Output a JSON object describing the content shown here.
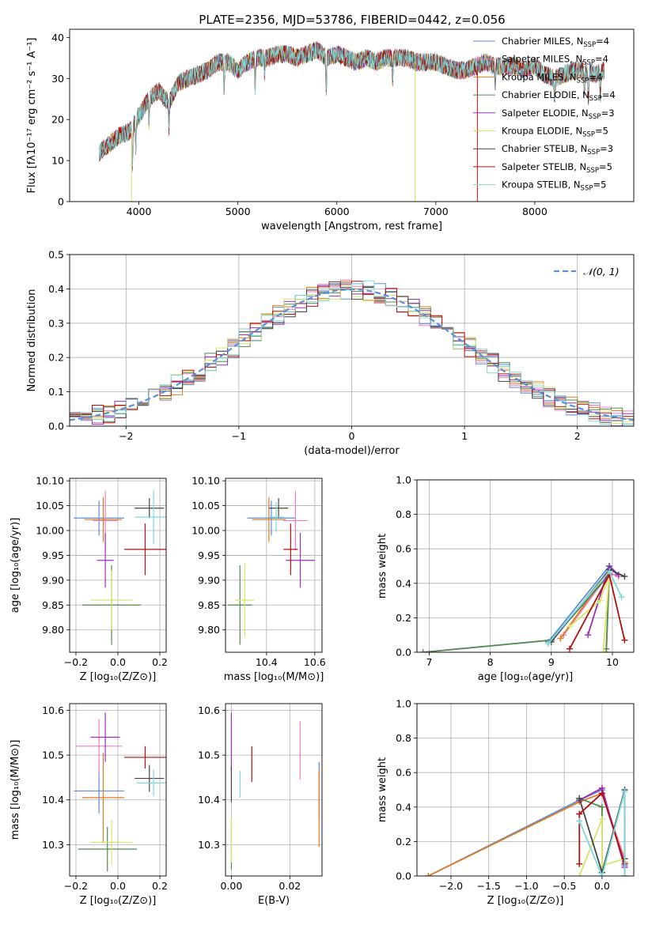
{
  "figure_title": "PLATE=2356, MJD=53786, FIBERID=0442, z=0.056",
  "model_colors": [
    "#5b8fd9",
    "#f07cc0",
    "#e07b22",
    "#4f8a4f",
    "#9b2fb5",
    "#d8e46b",
    "#444444",
    "#b01010",
    "#7fd8d8"
  ],
  "legend_labels": [
    {
      "base": "Chabrier MILES, N",
      "sub": "SSP",
      "tail": "=4"
    },
    {
      "base": "Salpeter MILES, N",
      "sub": "SSP",
      "tail": "=4"
    },
    {
      "base": "Kroupa MILES, N",
      "sub": "SSP",
      "tail": "=4"
    },
    {
      "base": "Chabrier ELODIE, N",
      "sub": "SSP",
      "tail": "=4"
    },
    {
      "base": "Salpeter ELODIE, N",
      "sub": "SSP",
      "tail": "=3"
    },
    {
      "base": "Kroupa ELODIE, N",
      "sub": "SSP",
      "tail": "=5"
    },
    {
      "base": "Chabrier STELIB, N",
      "sub": "SSP",
      "tail": "=3"
    },
    {
      "base": "Salpeter STELIB, N",
      "sub": "SSP",
      "tail": "=5"
    },
    {
      "base": "Kroupa STELIB, N",
      "sub": "SSP",
      "tail": "=5"
    }
  ],
  "chart_data": [
    {
      "id": "spectrum",
      "type": "line",
      "xlabel": "wavelength [Angstrom, rest frame]",
      "ylabel": "Flux [fλ10⁻¹⁷ erg cm⁻² s⁻¹ A⁻¹]",
      "xlim": [
        3300,
        9000
      ],
      "ylim": [
        0,
        42
      ],
      "xticks": [
        4000,
        5000,
        6000,
        7000,
        8000
      ],
      "yticks": [
        0,
        10,
        20,
        30,
        40
      ],
      "grid": false,
      "legend": "upper right",
      "continuum": {
        "x": [
          3600,
          3700,
          3800,
          3900,
          4000,
          4100,
          4200,
          4300,
          4400,
          4500,
          4600,
          4700,
          4800,
          4900,
          5000,
          5100,
          5200,
          5300,
          5400,
          5500,
          5600,
          5700,
          5800,
          5900,
          6000,
          6100,
          6200,
          6300,
          6400,
          6500,
          6600,
          6700,
          6800,
          6900,
          7000,
          7100,
          7200,
          7300,
          7400,
          7500,
          7600,
          7700,
          7800,
          7900,
          8000,
          8100,
          8200,
          8300,
          8400,
          8500,
          8600,
          8700
        ],
        "y": [
          12,
          14,
          16,
          17,
          21,
          25,
          27,
          24,
          29,
          30,
          31,
          32,
          34,
          34,
          32,
          34,
          35,
          35,
          36,
          36,
          35,
          36,
          37,
          35,
          36,
          35,
          34,
          35,
          34,
          35,
          35,
          35,
          34,
          34,
          34,
          33,
          32,
          32,
          33,
          34,
          33,
          33,
          33,
          32,
          33,
          31,
          30,
          31,
          32,
          32,
          31,
          32
        ]
      },
      "absorption_dips": [
        {
          "x": 3934,
          "depth": 10
        },
        {
          "x": 3969,
          "depth": 8
        },
        {
          "x": 4102,
          "depth": 6
        },
        {
          "x": 4304,
          "depth": 6
        },
        {
          "x": 4861,
          "depth": 6
        },
        {
          "x": 5175,
          "depth": 7
        },
        {
          "x": 5270,
          "depth": 4
        },
        {
          "x": 5893,
          "depth": 8
        },
        {
          "x": 6563,
          "depth": 5
        },
        {
          "x": 7600,
          "depth": 4
        },
        {
          "x": 8200,
          "depth": 6
        },
        {
          "x": 8500,
          "depth": 5
        },
        {
          "x": 8542,
          "depth": 7
        },
        {
          "x": 8662,
          "depth": 6
        }
      ],
      "spikes": [
        {
          "x": 3925,
          "color_index": 5,
          "bottom": 0
        },
        {
          "x": 6790,
          "color_index": 5,
          "bottom": 0
        },
        {
          "x": 7420,
          "color_index": 7,
          "bottom": 0
        }
      ],
      "wavelength_range": [
        3600,
        8700
      ]
    },
    {
      "id": "residual_hist",
      "type": "histogram",
      "xlabel": "(data-model)/error",
      "ylabel": "Normed distribution",
      "xlim": [
        -2.5,
        2.5
      ],
      "ylim": [
        0,
        0.5
      ],
      "xticks": [
        -2,
        -1,
        0,
        1,
        2
      ],
      "yticks": [
        0,
        0.1,
        0.2,
        0.3,
        0.4,
        0.5
      ],
      "grid": true,
      "bin_width": 0.1,
      "reference_curve": {
        "name": "𝒩(0, 1)",
        "label_base": "𝒩(0, 1)",
        "mean": 0,
        "sigma": 1,
        "color": "#5b8fd9"
      },
      "legend": "upper right"
    },
    {
      "id": "age_vs_Z",
      "type": "errorbar",
      "xlabel": "Z [log₁₀(Z/Z⊙)]",
      "ylabel": "age  [log₁₀(age/yr)]",
      "xlim": [
        -0.23,
        0.23
      ],
      "ylim": [
        9.755,
        10.105
      ],
      "xticks": [
        -0.2,
        0.0,
        0.2
      ],
      "yticks": [
        9.8,
        9.85,
        9.9,
        9.95,
        10.0,
        10.05,
        10.1
      ],
      "grid": true,
      "points": [
        {
          "model": 0,
          "x": -0.09,
          "xerr": 0.12,
          "y": 10.025,
          "yerr": 0.035
        },
        {
          "model": 1,
          "x": -0.06,
          "xerr": 0.06,
          "y": 10.02,
          "yerr": 0.06
        },
        {
          "model": 2,
          "x": -0.07,
          "xerr": 0.09,
          "y": 10.022,
          "yerr": 0.045
        },
        {
          "model": 3,
          "x": -0.03,
          "xerr": 0.14,
          "y": 9.85,
          "yerr": 0.08
        },
        {
          "model": 4,
          "x": -0.06,
          "xerr": 0.04,
          "y": 9.94,
          "yerr": 0.055
        },
        {
          "model": 5,
          "x": -0.03,
          "xerr": 0.1,
          "y": 9.86,
          "yerr": 0.06
        },
        {
          "model": 6,
          "x": 0.15,
          "xerr": 0.07,
          "y": 10.045,
          "yerr": 0.02
        },
        {
          "model": 7,
          "x": 0.13,
          "xerr": 0.1,
          "y": 9.962,
          "yerr": 0.052
        },
        {
          "model": 8,
          "x": 0.17,
          "xerr": 0.09,
          "y": 10.027,
          "yerr": 0.055
        }
      ]
    },
    {
      "id": "age_vs_mass",
      "type": "errorbar",
      "xlabel": "mass [log₁₀(M/M⊙)]",
      "ylabel": "",
      "xlim": [
        10.23,
        10.63
      ],
      "ylim": [
        9.755,
        10.105
      ],
      "xticks": [
        10.4,
        10.6
      ],
      "yticks": [
        9.8,
        9.85,
        9.9,
        9.95,
        10.0,
        10.05,
        10.1
      ],
      "grid": true,
      "points": [
        {
          "model": 0,
          "x": 10.42,
          "xerr": 0.1,
          "y": 10.025,
          "yerr": 0.035
        },
        {
          "model": 1,
          "x": 10.52,
          "xerr": 0.05,
          "y": 10.02,
          "yerr": 0.06
        },
        {
          "model": 2,
          "x": 10.41,
          "xerr": 0.07,
          "y": 10.022,
          "yerr": 0.045
        },
        {
          "model": 3,
          "x": 10.29,
          "xerr": 0.05,
          "y": 9.85,
          "yerr": 0.08
        },
        {
          "model": 4,
          "x": 10.54,
          "xerr": 0.06,
          "y": 9.94,
          "yerr": 0.055
        },
        {
          "model": 5,
          "x": 10.31,
          "xerr": 0.04,
          "y": 9.86,
          "yerr": 0.075
        },
        {
          "model": 6,
          "x": 10.45,
          "xerr": 0.04,
          "y": 10.045,
          "yerr": 0.02
        },
        {
          "model": 7,
          "x": 10.5,
          "xerr": 0.03,
          "y": 9.962,
          "yerr": 0.052
        },
        {
          "model": 8,
          "x": 10.44,
          "xerr": 0.03,
          "y": 10.027,
          "yerr": 0.03
        }
      ]
    },
    {
      "id": "weight_vs_age",
      "type": "line",
      "xlabel": "age  [log₁₀(age/yr)]",
      "ylabel": "mass weight",
      "xlim": [
        6.8,
        10.35
      ],
      "ylim": [
        0,
        1
      ],
      "xticks": [
        7,
        8,
        9,
        10
      ],
      "yticks": [
        0,
        0.2,
        0.4,
        0.6,
        0.8,
        1.0
      ],
      "grid": true,
      "series": [
        {
          "model": 0,
          "x": [
            8.95,
            9.95,
            10.1
          ],
          "y": [
            0.06,
            0.5,
            0.44
          ]
        },
        {
          "model": 1,
          "x": [
            9.2,
            9.95,
            10.1
          ],
          "y": [
            0.1,
            0.46,
            0.44
          ]
        },
        {
          "model": 2,
          "x": [
            9.15,
            9.95,
            9.9
          ],
          "y": [
            0.08,
            0.48,
            0.0
          ]
        },
        {
          "model": 3,
          "x": [
            6.9,
            9.0,
            9.95,
            9.9
          ],
          "y": [
            0.0,
            0.07,
            0.45,
            0.02
          ]
        },
        {
          "model": 4,
          "x": [
            9.6,
            9.95,
            10.1
          ],
          "y": [
            0.1,
            0.5,
            0.45
          ]
        },
        {
          "model": 5,
          "x": [
            9.3,
            9.8,
            9.95,
            9.85
          ],
          "y": [
            0.15,
            0.3,
            0.45,
            0.0
          ]
        },
        {
          "model": 6,
          "x": [
            9.0,
            9.95,
            10.2
          ],
          "y": [
            0.06,
            0.48,
            0.44
          ]
        },
        {
          "model": 7,
          "x": [
            9.3,
            9.95,
            10.2
          ],
          "y": [
            0.02,
            0.45,
            0.07
          ]
        },
        {
          "model": 8,
          "x": [
            8.95,
            9.95,
            10.15
          ],
          "y": [
            0.05,
            0.47,
            0.32
          ]
        }
      ]
    },
    {
      "id": "mass_vs_Z",
      "type": "errorbar",
      "xlabel": "Z [log₁₀(Z/Z⊙)]",
      "ylabel": "mass [log₁₀(M/M⊙)]",
      "xlim": [
        -0.23,
        0.23
      ],
      "ylim": [
        10.23,
        10.615
      ],
      "xticks": [
        -0.2,
        0.0,
        0.2
      ],
      "yticks": [
        10.3,
        10.4,
        10.5,
        10.6
      ],
      "grid": true,
      "points": [
        {
          "model": 0,
          "x": -0.09,
          "xerr": 0.12,
          "y": 10.42,
          "yerr": 0.05
        },
        {
          "model": 1,
          "x": -0.09,
          "xerr": 0.11,
          "y": 10.52,
          "yerr": 0.06
        },
        {
          "model": 2,
          "x": -0.07,
          "xerr": 0.1,
          "y": 10.405,
          "yerr": 0.1
        },
        {
          "model": 3,
          "x": -0.05,
          "xerr": 0.14,
          "y": 10.29,
          "yerr": 0.05
        },
        {
          "model": 4,
          "x": -0.06,
          "xerr": 0.07,
          "y": 10.54,
          "yerr": 0.055
        },
        {
          "model": 5,
          "x": -0.03,
          "xerr": 0.1,
          "y": 10.305,
          "yerr": 0.05
        },
        {
          "model": 6,
          "x": 0.15,
          "xerr": 0.07,
          "y": 10.448,
          "yerr": 0.03
        },
        {
          "model": 7,
          "x": 0.13,
          "xerr": 0.1,
          "y": 10.495,
          "yerr": 0.025
        },
        {
          "model": 8,
          "x": 0.17,
          "xerr": 0.08,
          "y": 10.438,
          "yerr": 0.03
        }
      ]
    },
    {
      "id": "mass_vs_ebv",
      "type": "errorbar",
      "xlabel": "E(B-V)",
      "ylabel": "",
      "xlim": [
        -0.002,
        0.031
      ],
      "ylim": [
        10.23,
        10.615
      ],
      "xticks": [
        0.0,
        0.02
      ],
      "yticks": [
        10.3,
        10.4,
        10.5,
        10.6
      ],
      "grid": true,
      "points": [
        {
          "model": 0,
          "x": 0.03,
          "xerr": 0,
          "y": 10.42,
          "yerr": 0.065
        },
        {
          "model": 1,
          "x": 0.0235,
          "xerr": 0,
          "y": 10.51,
          "yerr": 0.065
        },
        {
          "model": 2,
          "x": 0.03,
          "xerr": 0,
          "y": 10.38,
          "yerr": 0.085
        },
        {
          "model": 3,
          "x": 0.0,
          "xerr": 0,
          "y": 10.3,
          "yerr": 0.055
        },
        {
          "model": 4,
          "x": 0.0,
          "xerr": 0,
          "y": 10.53,
          "yerr": 0.065
        },
        {
          "model": 5,
          "x": 0.0,
          "xerr": 0,
          "y": 10.31,
          "yerr": 0.05
        },
        {
          "model": 6,
          "x": 0.0,
          "xerr": 0,
          "y": 10.435,
          "yerr": 0.04
        },
        {
          "model": 7,
          "x": 0.007,
          "xerr": 0,
          "y": 10.48,
          "yerr": 0.04
        },
        {
          "model": 8,
          "x": 0.003,
          "xerr": 0,
          "y": 10.435,
          "yerr": 0.03
        }
      ]
    },
    {
      "id": "weight_vs_Z",
      "type": "line",
      "xlabel": "Z [log₁₀(Z/Z⊙)]",
      "ylabel": "mass weight",
      "xlim": [
        -2.45,
        0.42
      ],
      "ylim": [
        0,
        1
      ],
      "xticks": [
        -2.0,
        -1.5,
        -1.0,
        -0.5,
        0.0
      ],
      "yticks": [
        0,
        0.2,
        0.4,
        0.6,
        0.8,
        1.0
      ],
      "grid": true,
      "series": [
        {
          "model": 0,
          "x": [
            -2.3,
            -0.3,
            0.0,
            0.3
          ],
          "y": [
            0.0,
            0.44,
            0.5,
            0.06
          ]
        },
        {
          "model": 1,
          "x": [
            -0.3,
            0.0,
            0.3
          ],
          "y": [
            0.36,
            0.48,
            0.1
          ]
        },
        {
          "model": 2,
          "x": [
            -2.3,
            -0.3,
            0.0,
            0.3
          ],
          "y": [
            0.0,
            0.43,
            0.48,
            0.08
          ]
        },
        {
          "model": 3,
          "x": [
            -0.3,
            0.0,
            0.0
          ],
          "y": [
            0.45,
            0.4,
            0.02
          ]
        },
        {
          "model": 4,
          "x": [
            -0.3,
            0.0,
            0.3,
            0.3
          ],
          "y": [
            0.44,
            0.51,
            0.05,
            0.0
          ]
        },
        {
          "model": 5,
          "x": [
            -0.3,
            0.0,
            0.0,
            0.3
          ],
          "y": [
            0.0,
            0.33,
            0.06,
            0.1
          ]
        },
        {
          "model": 6,
          "x": [
            -0.3,
            0.0,
            0.3,
            0.3
          ],
          "y": [
            0.45,
            0.02,
            0.5,
            0.1
          ]
        },
        {
          "model": 7,
          "x": [
            -0.3,
            -0.3,
            0.0,
            0.3
          ],
          "y": [
            0.07,
            0.36,
            0.48,
            0.07
          ]
        },
        {
          "model": 8,
          "x": [
            -0.3,
            0.0,
            0.3,
            0.3
          ],
          "y": [
            0.32,
            0.0,
            0.49,
            0.0
          ]
        }
      ]
    }
  ]
}
